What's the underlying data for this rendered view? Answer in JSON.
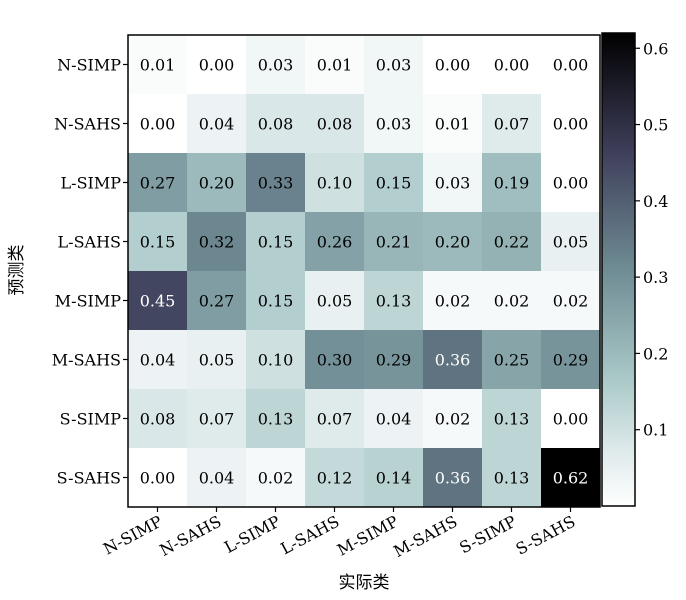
{
  "chart_data": {
    "type": "heatmap",
    "xlabel": "实际类",
    "ylabel": "预测类",
    "x_categories": [
      "N-SIMP",
      "N-SAHS",
      "L-SIMP",
      "L-SAHS",
      "M-SIMP",
      "M-SAHS",
      "S-SIMP",
      "S-SAHS"
    ],
    "y_categories": [
      "N-SIMP",
      "N-SAHS",
      "L-SIMP",
      "L-SAHS",
      "M-SIMP",
      "M-SAHS",
      "S-SIMP",
      "S-SAHS"
    ],
    "values": [
      [
        0.01,
        0.0,
        0.03,
        0.01,
        0.03,
        0.0,
        0.0,
        0.0
      ],
      [
        0.0,
        0.04,
        0.08,
        0.08,
        0.03,
        0.01,
        0.07,
        0.0
      ],
      [
        0.27,
        0.2,
        0.33,
        0.1,
        0.15,
        0.03,
        0.19,
        0.0
      ],
      [
        0.15,
        0.32,
        0.15,
        0.26,
        0.21,
        0.2,
        0.22,
        0.05
      ],
      [
        0.45,
        0.27,
        0.15,
        0.05,
        0.13,
        0.02,
        0.02,
        0.02
      ],
      [
        0.04,
        0.05,
        0.1,
        0.3,
        0.29,
        0.36,
        0.25,
        0.29
      ],
      [
        0.08,
        0.07,
        0.13,
        0.07,
        0.04,
        0.02,
        0.13,
        0.0
      ],
      [
        0.0,
        0.04,
        0.02,
        0.12,
        0.14,
        0.36,
        0.13,
        0.62
      ]
    ],
    "value_format": "2 decimals",
    "colorbar": {
      "min": 0.0,
      "max": 0.62,
      "ticks": [
        0.1,
        0.2,
        0.3,
        0.4,
        0.5,
        0.6
      ],
      "tick_labels": [
        "0.1",
        "0.2",
        "0.3",
        "0.4",
        "0.5",
        "0.6"
      ],
      "colormap": "bone_r"
    },
    "grid": false
  }
}
